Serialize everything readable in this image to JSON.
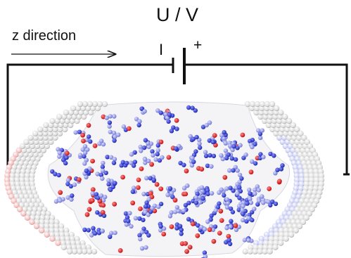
{
  "labels": {
    "voltage": "U / V",
    "direction": "z direction",
    "negative": "I",
    "positive": "+"
  },
  "colors": {
    "wire": "#111111",
    "oxygen": "#d91a1a",
    "nitrogen": "#2a35c8",
    "carbon": "#8f94e3",
    "electrode": "#e8e8e8",
    "electrode_tint": "#f3b8b8"
  },
  "icons": {
    "battery": "battery-symbol-icon",
    "arrow": "arrow-right-icon"
  }
}
